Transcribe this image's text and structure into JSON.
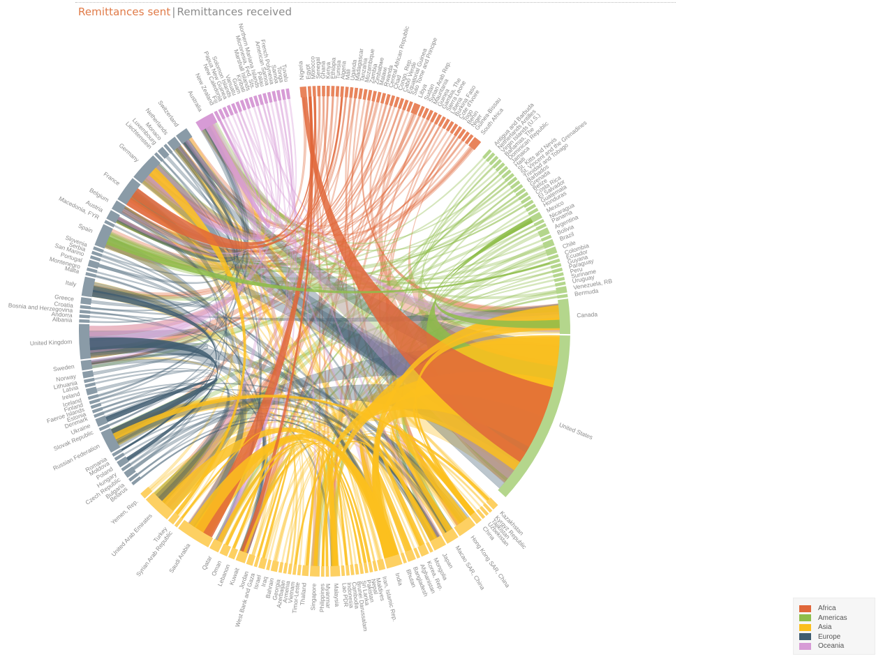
{
  "tabs": {
    "active": "Remittances sent",
    "separator": "|",
    "inactive": "Remittances received"
  },
  "legend": [
    {
      "label": "Africa",
      "color": "#e0673a"
    },
    {
      "label": "Americas",
      "color": "#8ebd4a"
    },
    {
      "label": "Asia",
      "color": "#fbbf1f"
    },
    {
      "label": "Europe",
      "color": "#3f5c70"
    },
    {
      "label": "Oceania",
      "color": "#d79bd6"
    }
  ],
  "chart_data": {
    "type": "chord",
    "regions": {
      "Africa": "#e0673a",
      "Americas": "#8ebd4a",
      "Asia": "#fbbf1f",
      "Europe": "#3f5c70",
      "Oceania": "#d79bd6"
    },
    "arc_colors": {
      "Africa": "#e8845c",
      "Americas": "#b4d68c",
      "Asia": "#fdd062",
      "Europe": "#8a9ba7",
      "Oceania": "#d79bd6"
    },
    "groups": [
      {
        "name": "Africa",
        "countries": [
          "Nigeria",
          "Egypt",
          "Morocco",
          "Senegal",
          "Ghana",
          "Kenya",
          "Ethiopia",
          "Tunisia",
          "Algeria",
          "Mali",
          "Uganda",
          "Madagascar",
          "Tanzania",
          "Mozambique",
          "Zambia",
          "Zimbabwe",
          "Malawi",
          "Rwanda",
          "Central African Republic",
          "Chad",
          "Congo, Rep.",
          "Cabo Verde",
          "Equatorial Guinea",
          "Sao Tome and Principe",
          "Libya",
          "Sudan",
          "Syrian Arab Rep.",
          "Mauritania",
          "Guinea",
          "Gambia, The",
          "Sierra Leone",
          "Liberia",
          "Burkina Faso",
          "Cote d'Ivoire",
          "Togo",
          "Benin",
          "Niger",
          "Guinea-Bissau",
          "South Africa"
        ]
      },
      {
        "name": "Americas",
        "countries": [
          "Antigua and Barbuda",
          "Netherlands Antilles",
          "Virgin Islands (U.S.)",
          "Bahamas, The",
          "Dominican Republic",
          "Jamaica",
          "Haiti",
          "St. Kitts and Nevis",
          "St. Vincent and the Grenadines",
          "Trinidad and Tobago",
          "Barbados",
          "Grenada",
          "Belize",
          "Costa Rica",
          "El Salvador",
          "Guatemala",
          "Honduras",
          "Mexico",
          "Nicaragua",
          "Panama",
          "Argentina",
          "Bolivia",
          "Brazil",
          "Chile",
          "Colombia",
          "Ecuador",
          "Guyana",
          "Paraguay",
          "Peru",
          "Suriname",
          "Uruguay",
          "Venezuela, RB",
          "Bermuda",
          "Canada",
          "United States"
        ]
      },
      {
        "name": "Asia",
        "countries": [
          "Kazakhstan",
          "Kyrgyz Republic",
          "Tajikistan",
          "Uzbekistan",
          "China",
          "Hong Kong SAR, China",
          "Macao SAR, China",
          "Japan",
          "Mongolia",
          "Korea, Rep.",
          "Afghanistan",
          "Bangladesh",
          "Bhutan",
          "India",
          "Iran, Islamic Rep.",
          "Maldives",
          "Nepal",
          "Pakistan",
          "Sri Lanka",
          "Brunei Darussalam",
          "Cambodia",
          "Indonesia",
          "Lao PDR",
          "Malaysia",
          "Myanmar",
          "Philippines",
          "Singapore",
          "Thailand",
          "Timor-Leste",
          "Vietnam",
          "Armenia",
          "Azerbaijan",
          "Georgia",
          "Bahrain",
          "Iraq",
          "Israel",
          "West Bank and Gaza",
          "Jordan",
          "Kuwait",
          "Lebanon",
          "Oman",
          "Qatar",
          "Saudi Arabia",
          "Syrian Arab Republic",
          "Turkey",
          "United Arab Emirates",
          "Yemen, Rep."
        ]
      },
      {
        "name": "Europe",
        "countries": [
          "Belarus",
          "Bulgaria",
          "Czech Republic",
          "Hungary",
          "Poland",
          "Moldova",
          "Romania",
          "Russian Federation",
          "Slovak Republic",
          "Ukraine",
          "Denmark",
          "Estonia",
          "Faeroe Islands",
          "Finland",
          "Iceland",
          "Ireland",
          "Latvia",
          "Lithuania",
          "Norway",
          "Sweden",
          "United Kingdom",
          "Albania",
          "Andorra",
          "Bosnia and Herzegovina",
          "Croatia",
          "Greece",
          "Italy",
          "Malta",
          "Montenegro",
          "Portugal",
          "San Marino",
          "Serbia",
          "Slovenia",
          "Spain",
          "Macedonia, FYR",
          "Austria",
          "Belgium",
          "France",
          "Germany",
          "Liechtenstein",
          "Luxembourg",
          "Monaco",
          "Netherlands",
          "Switzerland"
        ]
      },
      {
        "name": "Oceania",
        "countries": [
          "Australia",
          "New Zealand",
          "Fiji",
          "New Caledonia",
          "Papua New Guinea",
          "Solomon Islands",
          "Vanuatu",
          "Guam",
          "Kiribati",
          "Marshall Islands",
          "Micronesia, Fed. Sts.",
          "Northern Mariana Islands",
          "Palau",
          "American Samoa",
          "French Polynesia",
          "Samoa",
          "Tonga",
          "Tuvalu"
        ]
      }
    ],
    "major_recipient_arcs": [
      {
        "name": "United States",
        "region": "Americas"
      },
      {
        "name": "Canada",
        "region": "Americas"
      },
      {
        "name": "United Kingdom",
        "region": "Europe"
      },
      {
        "name": "Germany",
        "region": "Europe"
      },
      {
        "name": "France",
        "region": "Europe"
      },
      {
        "name": "Spain",
        "region": "Europe"
      },
      {
        "name": "Italy",
        "region": "Europe"
      },
      {
        "name": "Russian Federation",
        "region": "Europe"
      },
      {
        "name": "Switzerland",
        "region": "Europe"
      },
      {
        "name": "Australia",
        "region": "Oceania"
      },
      {
        "name": "United Arab Emirates",
        "region": "Asia"
      },
      {
        "name": "Saudi Arabia",
        "region": "Asia"
      },
      {
        "name": "India",
        "region": "Asia"
      },
      {
        "name": "Hong Kong SAR, China",
        "region": "Asia"
      },
      {
        "name": "Macao SAR, China",
        "region": "Asia"
      },
      {
        "name": "Japan",
        "region": "Asia"
      }
    ]
  }
}
